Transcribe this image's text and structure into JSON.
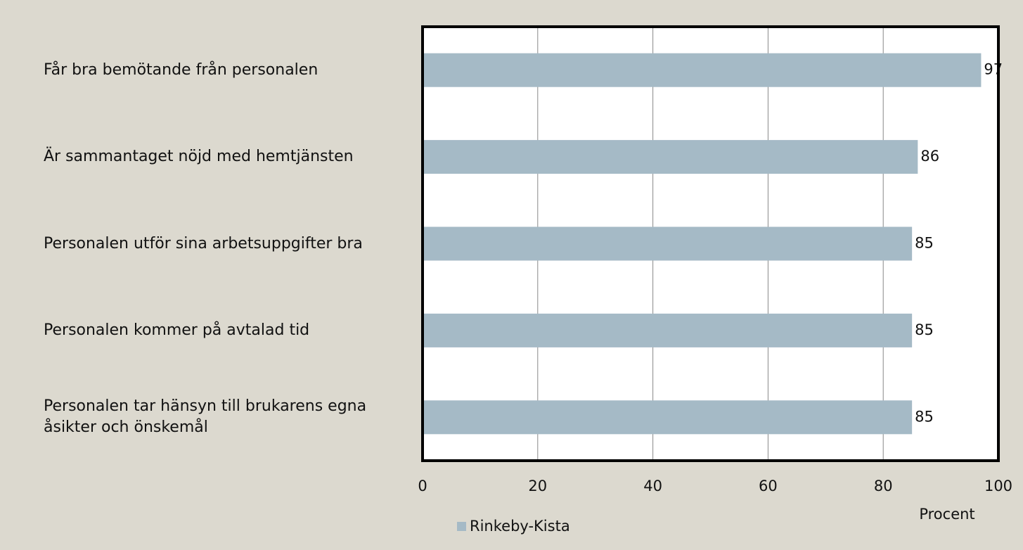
{
  "chart_data": {
    "type": "bar",
    "orientation": "horizontal",
    "categories": [
      "Får bra bemötande från personalen",
      "Är sammantaget nöjd med hemtjänsten",
      "Personalen utför sina arbetsuppgifter bra",
      "Personalen kommer på avtalad tid",
      "Personalen tar hänsyn till brukarens egna åsikter och önskemål"
    ],
    "series": [
      {
        "name": "Rinkeby-Kista",
        "color": "#a5bac6",
        "values": [
          97,
          86,
          85,
          85,
          85
        ]
      }
    ],
    "xlim": [
      0,
      100
    ],
    "xticks": [
      0,
      20,
      40,
      60,
      80,
      100
    ],
    "grid": true,
    "x_label": "Procent",
    "legend": "bottom"
  }
}
